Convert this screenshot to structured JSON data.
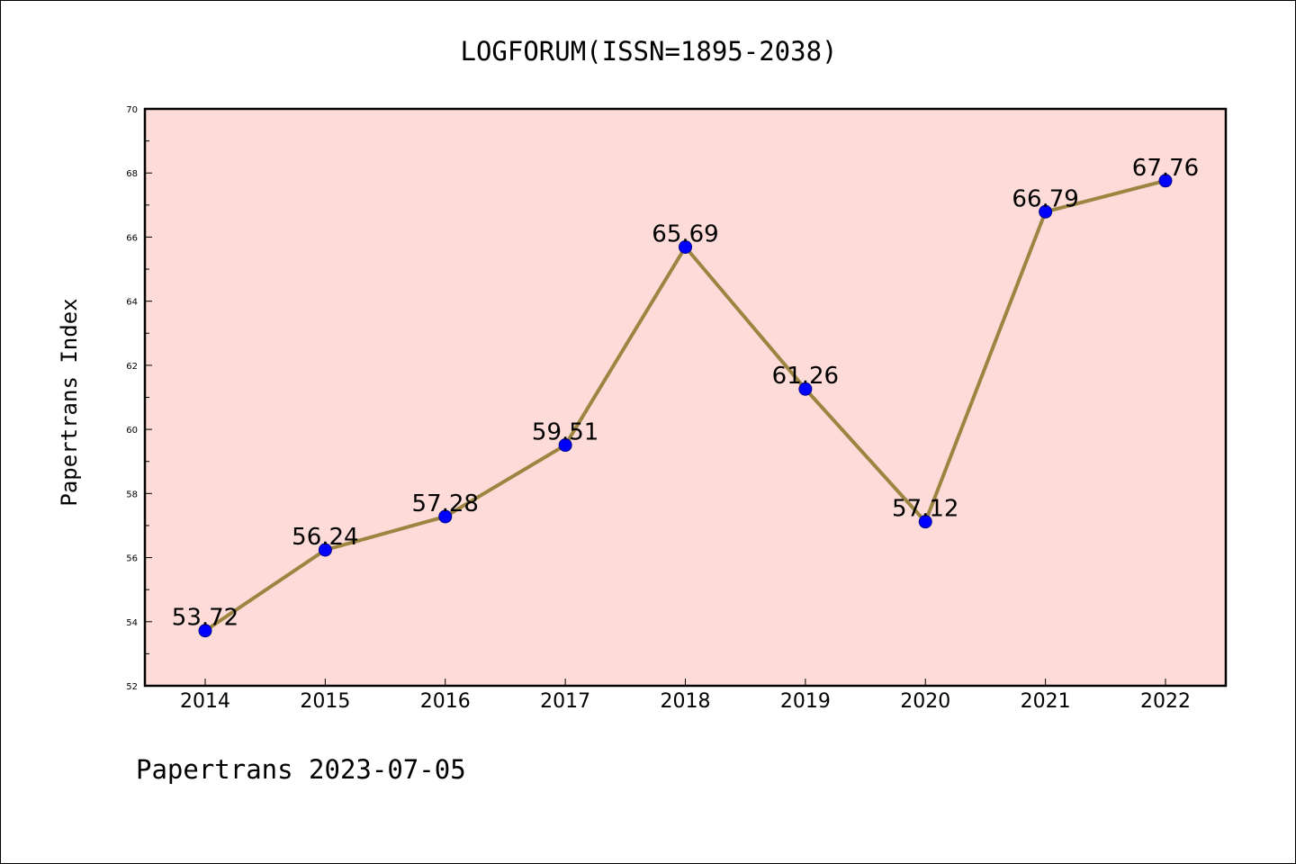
{
  "chart_data": {
    "type": "line",
    "title": "LOGFORUM(ISSN=1895-2038)",
    "ylabel": "Papertrans Index",
    "xlabel": "",
    "categories": [
      "2014",
      "2015",
      "2016",
      "2017",
      "2018",
      "2019",
      "2020",
      "2021",
      "2022"
    ],
    "values": [
      53.72,
      56.24,
      57.28,
      59.51,
      65.69,
      61.26,
      57.12,
      66.79,
      67.76
    ],
    "data_labels": [
      "53.72",
      "56.24",
      "57.28",
      "59.51",
      "65.69",
      "61.26",
      "57.12",
      "66.79",
      "67.76"
    ],
    "ylim": [
      52,
      70
    ],
    "yticks": [
      "52",
      "54",
      "56",
      "58",
      "60",
      "62",
      "64",
      "66",
      "68",
      "70"
    ],
    "grid": false,
    "legend": "none",
    "footer": "Papertrans 2023-07-05",
    "colors": {
      "plot_background": "#fddbd8",
      "line": "#9b8541",
      "marker_fill": "#0000ff",
      "marker_edge": "#00008b",
      "axes": "#000000"
    }
  }
}
